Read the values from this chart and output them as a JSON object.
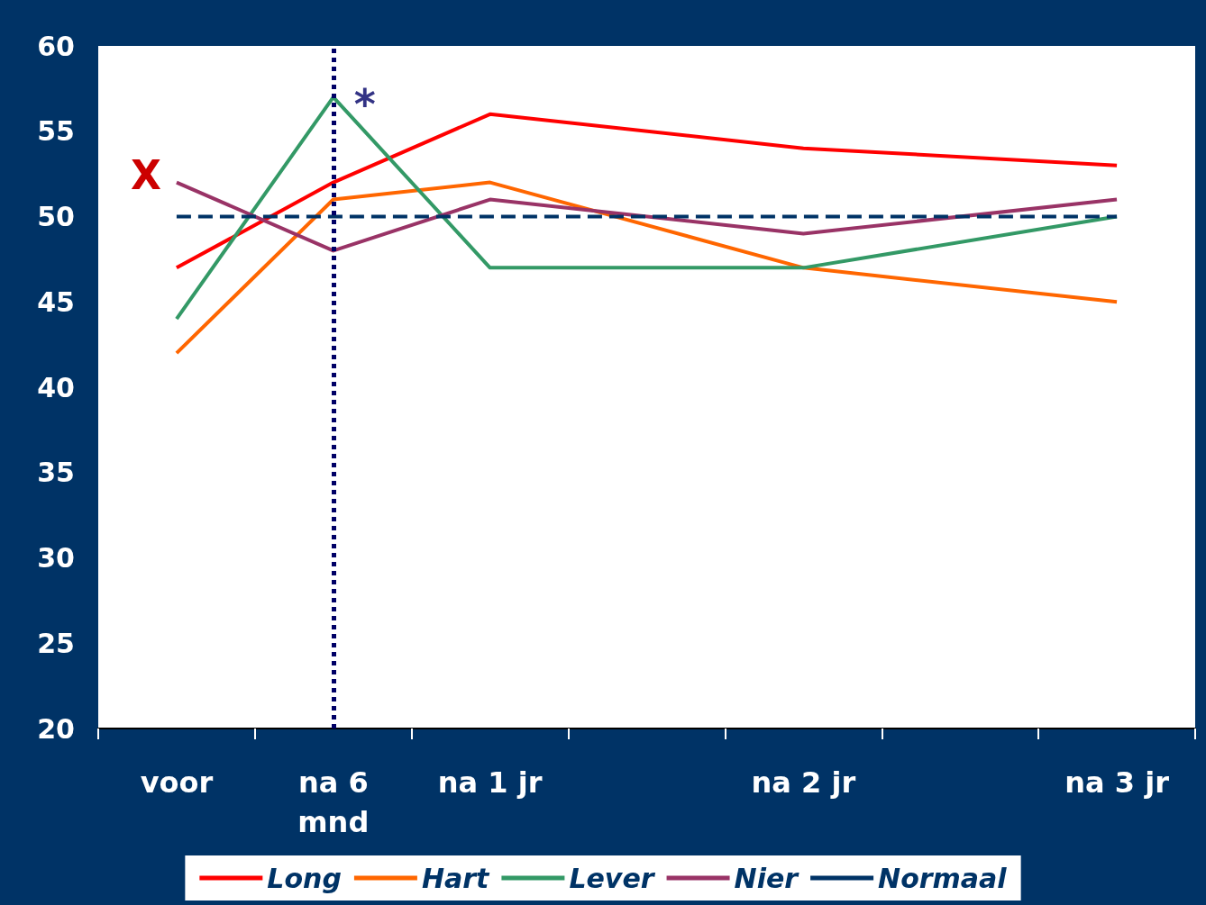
{
  "chart_data": {
    "type": "line",
    "categories": [
      "voor",
      "na 6 mnd",
      "na 1 jr",
      null,
      "na 2 jr",
      null,
      "na 3 jr"
    ],
    "series": [
      {
        "name": "Long",
        "color": "#ff0000",
        "values": [
          47,
          52,
          56,
          null,
          54,
          null,
          53
        ]
      },
      {
        "name": "Hart",
        "color": "#ff6600",
        "values": [
          42,
          51,
          52,
          null,
          47,
          null,
          45
        ]
      },
      {
        "name": "Lever",
        "color": "#339966",
        "values": [
          44,
          57,
          47,
          null,
          47,
          null,
          50
        ]
      },
      {
        "name": "Nier",
        "color": "#993366",
        "values": [
          52,
          48,
          51,
          null,
          49,
          null,
          51
        ]
      },
      {
        "name": "Normaal",
        "color": "#003366",
        "line_style": "dashed",
        "values": [
          50,
          50,
          50,
          null,
          50,
          null,
          50
        ]
      }
    ],
    "ylim": [
      20,
      60
    ],
    "yticks": [
      20,
      25,
      30,
      35,
      40,
      45,
      50,
      55,
      60
    ],
    "ref_lines": [
      {
        "axis": "x",
        "value": "na 6 mnd",
        "line_style": "dotted",
        "color": "#000066"
      }
    ],
    "annotations": [
      "X",
      {
        "text": "*",
        "x": "na 6 mnd",
        "y": 57
      }
    ],
    "grid": false,
    "legend": "bottom",
    "marker": "none",
    "line_style": "solid"
  }
}
